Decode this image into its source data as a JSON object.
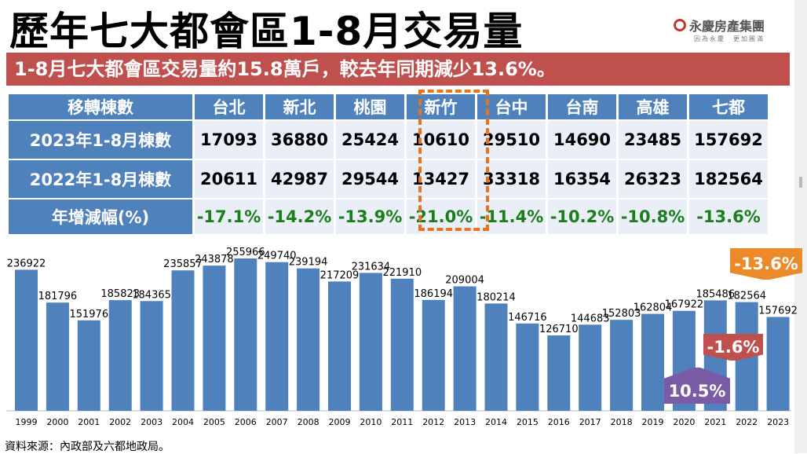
{
  "title": "歷年七大都會區1-8月交易量",
  "logo": {
    "name": "永慶房產集團",
    "slogan": "因為永慶　更加圓滿"
  },
  "banner": "1-8月七大都會區交易量約15.8萬戶，較去年同期減少13.6%。",
  "table": {
    "headers": [
      "移轉棟數",
      "台北",
      "新北",
      "桃園",
      "新竹",
      "台中",
      "台南",
      "高雄",
      "七都"
    ],
    "rows": [
      {
        "label": "2023年1-8月棟數",
        "values": [
          "17093",
          "36880",
          "25424",
          "10610",
          "29510",
          "14690",
          "23485",
          "157692"
        ]
      },
      {
        "label": "2022年1-8月棟數",
        "values": [
          "20611",
          "42987",
          "29544",
          "13427",
          "33318",
          "16354",
          "26323",
          "182564"
        ]
      },
      {
        "label": "年增減幅(%)",
        "values": [
          "-17.1%",
          "-14.2%",
          "-13.9%",
          "-21.0%",
          "-11.4%",
          "-10.2%",
          "-10.8%",
          "-13.6%"
        ]
      }
    ],
    "highlight_column": "新竹"
  },
  "chart_data": {
    "type": "bar",
    "categories": [
      "1999",
      "2000",
      "2001",
      "2002",
      "2003",
      "2004",
      "2005",
      "2006",
      "2007",
      "2008",
      "2009",
      "2010",
      "2011",
      "2012",
      "2013",
      "2014",
      "2015",
      "2016",
      "2017",
      "2018",
      "2019",
      "2020",
      "2021",
      "2022",
      "2023"
    ],
    "values": [
      236922,
      181796,
      151976,
      185823,
      184365,
      235857,
      243878,
      255966,
      249740,
      239194,
      217209,
      231634,
      221910,
      186194,
      209004,
      180214,
      146716,
      126710,
      144683,
      152803,
      162804,
      167922,
      185486,
      182564,
      157692
    ],
    "ylim": [
      0,
      270000
    ],
    "color": "#4f81bd",
    "annotations": [
      {
        "text": "10.5%",
        "color": "#7a5ba6"
      },
      {
        "text": "-1.6%",
        "color": "#c0504d"
      },
      {
        "text": "-13.6%",
        "color": "#ec8a2a"
      }
    ]
  },
  "source": "資料來源：內政部及六都地政局。"
}
